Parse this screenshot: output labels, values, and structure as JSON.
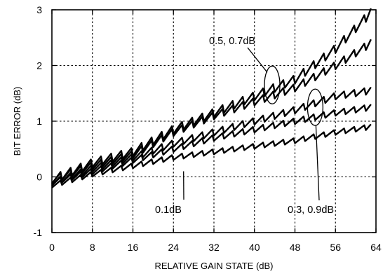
{
  "chart_data": {
    "type": "line",
    "title": "",
    "xlabel": "RELATIVE GAIN STATE (dB)",
    "ylabel": "BIT ERROR (dB)",
    "xlim": [
      0,
      64
    ],
    "ylim": [
      -1,
      3
    ],
    "xticks": [
      0,
      8,
      16,
      24,
      32,
      40,
      48,
      56,
      64
    ],
    "yticks": [
      -1,
      0,
      1,
      2,
      3
    ],
    "grid": true,
    "sawtooth_period_db": 2,
    "series": [
      {
        "line_group": "0.1dB",
        "x": [
          0,
          8,
          16,
          24,
          32,
          40,
          48,
          56,
          63
        ],
        "y": [
          -0.15,
          0.05,
          0.2,
          0.35,
          0.45,
          0.55,
          0.65,
          0.8,
          0.9
        ]
      },
      {
        "line_group": "0.3, 0.9dB",
        "x": [
          0,
          8,
          16,
          24,
          32,
          40,
          48,
          56,
          63
        ],
        "y": [
          -0.1,
          0.1,
          0.3,
          0.5,
          0.7,
          0.85,
          1.0,
          1.15,
          1.25
        ]
      },
      {
        "line_group": "0.3, 0.9dB",
        "x": [
          0,
          8,
          16,
          24,
          32,
          40,
          48,
          56,
          63
        ],
        "y": [
          -0.1,
          0.15,
          0.35,
          0.6,
          0.8,
          1.0,
          1.2,
          1.45,
          1.55
        ]
      },
      {
        "line_group": "0.5, 0.7dB",
        "x": [
          0,
          8,
          16,
          24,
          32,
          40,
          48,
          56,
          63
        ],
        "y": [
          -0.05,
          0.2,
          0.4,
          0.8,
          1.1,
          1.35,
          1.6,
          2.0,
          2.4
        ]
      },
      {
        "line_group": "0.5, 0.7dB",
        "x": [
          0,
          8,
          16,
          24,
          32,
          40,
          48,
          56,
          63
        ],
        "y": [
          -0.05,
          0.25,
          0.45,
          0.85,
          1.15,
          1.45,
          1.75,
          2.3,
          2.95
        ]
      }
    ],
    "annotations": [
      {
        "text": "0.5, 0.7dB",
        "points_to": {
          "x": 43.5,
          "y": 1.65
        }
      },
      {
        "text": "0.3, 0.9dB",
        "points_to": {
          "x": 52,
          "y": 1.25
        }
      },
      {
        "text": "0.1dB",
        "points_to": {
          "x": 26,
          "y": 0.1
        }
      }
    ]
  }
}
